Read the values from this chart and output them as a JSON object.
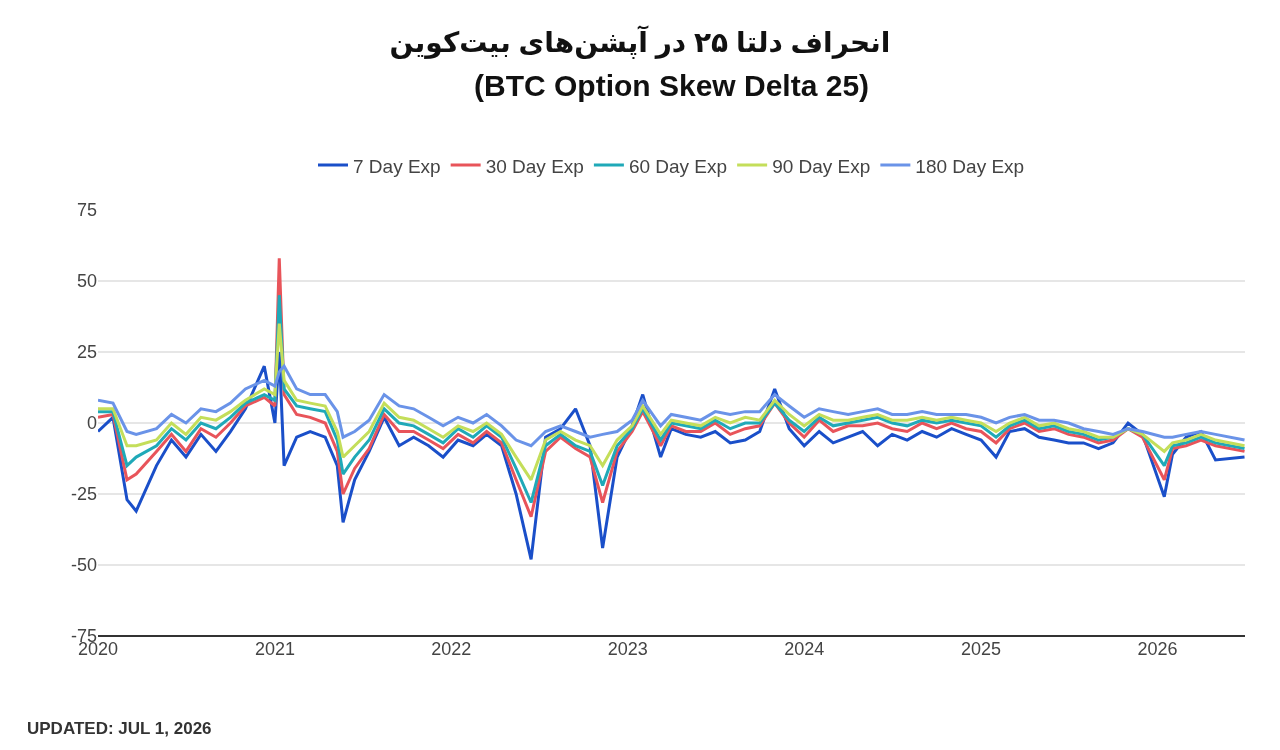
{
  "chart_data": {
    "type": "line",
    "title": "انحراف دلتا ۲۵ در آپشن‌های بیت‌کوین",
    "subtitle": "(BTC Option Skew Delta 25)",
    "annotations": [
      "UPDATED: JUL 1, 2026"
    ],
    "x": [
      "2020-01-01",
      "2020-02-01",
      "2020-03-01",
      "2020-03-20",
      "2020-05-01",
      "2020-06-01",
      "2020-07-01",
      "2020-08-01",
      "2020-09-01",
      "2020-10-01",
      "2020-11-01",
      "2020-12-10",
      "2021-01-01",
      "2021-01-10",
      "2021-01-20",
      "2021-02-15",
      "2021-03-15",
      "2021-04-15",
      "2021-05-10",
      "2021-05-22",
      "2021-06-15",
      "2021-07-15",
      "2021-08-15",
      "2021-09-15",
      "2021-10-15",
      "2021-11-15",
      "2021-12-15",
      "2022-01-15",
      "2022-02-15",
      "2022-03-15",
      "2022-04-15",
      "2022-05-15",
      "2022-06-15",
      "2022-07-15",
      "2022-08-15",
      "2022-09-15",
      "2022-10-15",
      "2022-11-10",
      "2022-12-10",
      "2023-01-10",
      "2023-02-01",
      "2023-03-10",
      "2023-04-01",
      "2023-05-01",
      "2023-06-01",
      "2023-07-01",
      "2023-08-01",
      "2023-09-01",
      "2023-10-01",
      "2023-11-01",
      "2023-12-01",
      "2024-01-01",
      "2024-02-01",
      "2024-03-01",
      "2024-04-01",
      "2024-05-01",
      "2024-06-01",
      "2024-07-01",
      "2024-08-01",
      "2024-09-01",
      "2024-10-01",
      "2024-11-01",
      "2024-12-01",
      "2025-01-01",
      "2025-02-01",
      "2025-03-01",
      "2025-04-01",
      "2025-05-01",
      "2025-06-01",
      "2025-07-01",
      "2025-08-01",
      "2025-09-01",
      "2025-10-01",
      "2025-11-01",
      "2025-12-01",
      "2026-01-15",
      "2026-02-01",
      "2026-03-01",
      "2026-04-01",
      "2026-05-01",
      "2026-06-30"
    ],
    "series": [
      {
        "name": "7 Day Exp",
        "color": "#1a4fc9",
        "values": [
          -3,
          2,
          -27,
          -31,
          -15,
          -6,
          -12,
          -4,
          -10,
          -3,
          5,
          20,
          0,
          25,
          -15,
          -5,
          -3,
          -5,
          -15,
          -35,
          -20,
          -10,
          2,
          -8,
          -5,
          -8,
          -12,
          -6,
          -8,
          -4,
          -8,
          -25,
          -48,
          -5,
          -2,
          5,
          -8,
          -44,
          -12,
          -1,
          10,
          -12,
          -2,
          -4,
          -5,
          -3,
          -7,
          -6,
          -3,
          12,
          -2,
          -8,
          -3,
          -7,
          -5,
          -3,
          -8,
          -4,
          -6,
          -3,
          -5,
          -2,
          -4,
          -6,
          -12,
          -3,
          -2,
          -5,
          -6,
          -7,
          -7,
          -9,
          -7,
          0,
          -4,
          -26,
          -11,
          -5,
          -3,
          -13,
          -12
        ]
      },
      {
        "name": "30 Day Exp",
        "color": "#e8545a",
        "values": [
          2,
          3,
          -20,
          -18,
          -10,
          -4,
          -10,
          -2,
          -5,
          0,
          6,
          9,
          6,
          58,
          10,
          3,
          2,
          0,
          -10,
          -25,
          -16,
          -9,
          3,
          -3,
          -3,
          -6,
          -9,
          -4,
          -7,
          -3,
          -7,
          -20,
          -33,
          -10,
          -5,
          -9,
          -12,
          -28,
          -10,
          -3,
          4,
          -8,
          -1,
          -3,
          -3,
          0,
          -4,
          -2,
          -1,
          7,
          0,
          -5,
          1,
          -3,
          -1,
          -1,
          0,
          -2,
          -3,
          0,
          -2,
          0,
          -2,
          -3,
          -7,
          -2,
          0,
          -3,
          -2,
          -4,
          -5,
          -7,
          -6,
          -2,
          -5,
          -20,
          -9,
          -8,
          -6,
          -8,
          -10
        ]
      },
      {
        "name": "60 Day Exp",
        "color": "#1fa9b8",
        "values": [
          4,
          4,
          -15,
          -12,
          -8,
          -2,
          -6,
          0,
          -2,
          2,
          7,
          10,
          8,
          45,
          12,
          6,
          5,
          4,
          -6,
          -18,
          -12,
          -6,
          5,
          0,
          -1,
          -4,
          -7,
          -2,
          -5,
          -1,
          -5,
          -16,
          -28,
          -8,
          -4,
          -8,
          -10,
          -22,
          -8,
          -2,
          5,
          -6,
          0,
          -1,
          -2,
          1,
          -2,
          0,
          0,
          7,
          1,
          -3,
          2,
          -1,
          0,
          1,
          2,
          0,
          -1,
          1,
          0,
          1,
          0,
          -1,
          -5,
          -1,
          1,
          -2,
          -1,
          -3,
          -4,
          -6,
          -5,
          -2,
          -4,
          -15,
          -8,
          -7,
          -5,
          -7,
          -9
        ]
      },
      {
        "name": "90 Day Exp",
        "color": "#c4de5a",
        "values": [
          5,
          5,
          -8,
          -8,
          -6,
          0,
          -4,
          2,
          1,
          4,
          8,
          12,
          10,
          35,
          15,
          8,
          7,
          6,
          -3,
          -12,
          -8,
          -3,
          7,
          2,
          1,
          -2,
          -5,
          -1,
          -3,
          0,
          -4,
          -12,
          -20,
          -6,
          -3,
          -6,
          -8,
          -15,
          -6,
          -1,
          6,
          -4,
          1,
          0,
          -1,
          2,
          0,
          2,
          1,
          8,
          3,
          -1,
          3,
          1,
          1,
          2,
          3,
          1,
          1,
          2,
          1,
          2,
          1,
          0,
          -3,
          0,
          2,
          -1,
          0,
          -2,
          -3,
          -5,
          -5,
          -2,
          -4,
          -10,
          -7,
          -6,
          -4,
          -6,
          -8
        ]
      },
      {
        "name": "180 Day Exp",
        "color": "#6a93e8",
        "values": [
          8,
          7,
          -3,
          -4,
          -2,
          3,
          0,
          5,
          4,
          7,
          12,
          15,
          13,
          18,
          20,
          12,
          10,
          10,
          4,
          -5,
          -3,
          1,
          10,
          6,
          5,
          2,
          -1,
          2,
          0,
          3,
          -1,
          -6,
          -8,
          -3,
          -1,
          -3,
          -5,
          -4,
          -3,
          1,
          8,
          -1,
          3,
          2,
          1,
          4,
          3,
          4,
          4,
          10,
          6,
          2,
          5,
          4,
          3,
          4,
          5,
          3,
          3,
          4,
          3,
          3,
          3,
          2,
          0,
          2,
          3,
          1,
          1,
          0,
          -2,
          -3,
          -4,
          -2,
          -3,
          -5,
          -5,
          -4,
          -3,
          -4,
          -6
        ]
      }
    ],
    "xlim": [
      "2020-01-01",
      "2026-07-01"
    ],
    "xticks": [
      {
        "value": "2020-01-01",
        "label": "2020"
      },
      {
        "value": "2021-01-01",
        "label": "2021"
      },
      {
        "value": "2022-01-01",
        "label": "2022"
      },
      {
        "value": "2023-01-01",
        "label": "2023"
      },
      {
        "value": "2024-01-01",
        "label": "2024"
      },
      {
        "value": "2025-01-01",
        "label": "2025"
      },
      {
        "value": "2026-01-01",
        "label": "2026"
      }
    ],
    "ylim": [
      -75,
      75
    ],
    "yticks": [
      -75,
      -50,
      -25,
      0,
      25,
      50,
      75
    ],
    "grid": "y",
    "legend": "top",
    "marker": "none",
    "line_style": "solid"
  }
}
